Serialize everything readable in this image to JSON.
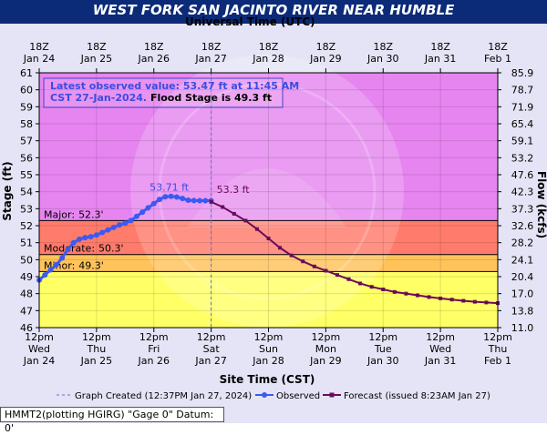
{
  "title": "WEST FORK SAN JACINTO RIVER NEAR HUMBLE",
  "footer_text": "HMMT2(plotting HGIRG) \"Gage 0\" Datum:  0'",
  "chart_data": {
    "type": "line",
    "top_axis_label": "Universal Time (UTC)",
    "bottom_axis_label": "Site Time (CST)",
    "ylabel": "Stage (ft)",
    "y2label": "Flow (kcfs)",
    "ylim": [
      46,
      61
    ],
    "y_ticks": [
      46,
      47,
      48,
      49,
      50,
      51,
      52,
      53,
      54,
      55,
      56,
      57,
      58,
      59,
      60,
      61
    ],
    "y2_ticks": [
      "11.0",
      "13.8",
      "17.0",
      "20.4",
      "24.1",
      "28.2",
      "32.6",
      "37.3",
      "42.3",
      "47.6",
      "53.2",
      "59.1",
      "65.4",
      "71.9",
      "78.7",
      "85.9"
    ],
    "bottom_ticks": [
      {
        "l1": "12pm",
        "l2": "Wed",
        "l3": "Jan 24"
      },
      {
        "l1": "12pm",
        "l2": "Thu",
        "l3": "Jan 25"
      },
      {
        "l1": "12pm",
        "l2": "Fri",
        "l3": "Jan 26"
      },
      {
        "l1": "12pm",
        "l2": "Sat",
        "l3": "Jan 27"
      },
      {
        "l1": "12pm",
        "l2": "Sun",
        "l3": "Jan 28"
      },
      {
        "l1": "12pm",
        "l2": "Mon",
        "l3": "Jan 29"
      },
      {
        "l1": "12pm",
        "l2": "Tue",
        "l3": "Jan 30"
      },
      {
        "l1": "12pm",
        "l2": "Wed",
        "l3": "Jan 31"
      },
      {
        "l1": "12pm",
        "l2": "Thu",
        "l3": "Feb 1"
      }
    ],
    "top_ticks": [
      {
        "l1": "18Z",
        "l2": "Jan 24"
      },
      {
        "l1": "18Z",
        "l2": "Jan 25"
      },
      {
        "l1": "18Z",
        "l2": "Jan 26"
      },
      {
        "l1": "18Z",
        "l2": "Jan 27"
      },
      {
        "l1": "18Z",
        "l2": "Jan 28"
      },
      {
        "l1": "18Z",
        "l2": "Jan 29"
      },
      {
        "l1": "18Z",
        "l2": "Jan 30"
      },
      {
        "l1": "18Z",
        "l2": "Jan 31"
      },
      {
        "l1": "18Z",
        "l2": "Feb 1"
      }
    ],
    "bands": [
      {
        "from": 46,
        "to": 49.3,
        "color": "#ffff66"
      },
      {
        "from": 49.3,
        "to": 50.3,
        "color": "#ffc35a"
      },
      {
        "from": 50.3,
        "to": 52.3,
        "color": "#ff7b6b"
      },
      {
        "from": 52.3,
        "to": 61,
        "color": "#e685f0"
      }
    ],
    "thresholds": [
      {
        "label": "Major:",
        "value_text": "52.3'",
        "value": 52.3
      },
      {
        "label": "Moderate:",
        "value_text": "50.3'",
        "value": 50.3
      },
      {
        "label": "Minor:",
        "value_text": "49.3'",
        "value": 49.3
      }
    ],
    "info_box": {
      "line1": "Latest observed value: 53.47 ft at 11:45 AM",
      "line2a": "CST 27-Jan-2024.",
      "line2b": " Flood Stage is 49.3 ft"
    },
    "created_day": 3.0,
    "observed_peak_label": "53.71 ft",
    "forecast_peak_label": "53.3 ft",
    "series": [
      {
        "name": "Observed",
        "color": "#3a5af0",
        "x": [
          0,
          0.1,
          0.2,
          0.3,
          0.4,
          0.5,
          0.6,
          0.7,
          0.8,
          0.9,
          1.0,
          1.1,
          1.2,
          1.3,
          1.4,
          1.5,
          1.6,
          1.7,
          1.8,
          1.9,
          2.0,
          2.1,
          2.2,
          2.3,
          2.4,
          2.5,
          2.6,
          2.7,
          2.8,
          2.9,
          3.0
        ],
        "y": [
          48.8,
          49.1,
          49.4,
          49.7,
          50.1,
          50.6,
          51.0,
          51.2,
          51.3,
          51.35,
          51.45,
          51.6,
          51.75,
          51.9,
          52.05,
          52.15,
          52.3,
          52.55,
          52.8,
          53.05,
          53.3,
          53.55,
          53.7,
          53.73,
          53.69,
          53.6,
          53.5,
          53.48,
          53.47,
          53.47,
          53.47
        ]
      },
      {
        "name": "Forecast (issued 8:23AM Jan 27)",
        "color": "#6a0b5a",
        "x": [
          3.0,
          3.2,
          3.4,
          3.6,
          3.8,
          4.0,
          4.2,
          4.4,
          4.6,
          4.8,
          5.0,
          5.2,
          5.4,
          5.6,
          5.8,
          6.0,
          6.2,
          6.4,
          6.6,
          6.8,
          7.0,
          7.2,
          7.4,
          7.6,
          7.8,
          8.0
        ],
        "y": [
          53.4,
          53.1,
          52.7,
          52.3,
          51.8,
          51.25,
          50.7,
          50.25,
          49.9,
          49.6,
          49.35,
          49.1,
          48.85,
          48.6,
          48.4,
          48.25,
          48.1,
          48.0,
          47.9,
          47.8,
          47.72,
          47.65,
          47.58,
          47.52,
          47.48,
          47.44
        ]
      }
    ],
    "legend": {
      "created": "Graph Created (12:37PM Jan 27, 2024)",
      "observed": "Observed",
      "forecast": "Forecast (issued 8:23AM Jan 27)"
    },
    "colors": {
      "observed": "#3a5af0",
      "forecast": "#6a0b5a",
      "title_bg": "#0b2a78"
    }
  }
}
